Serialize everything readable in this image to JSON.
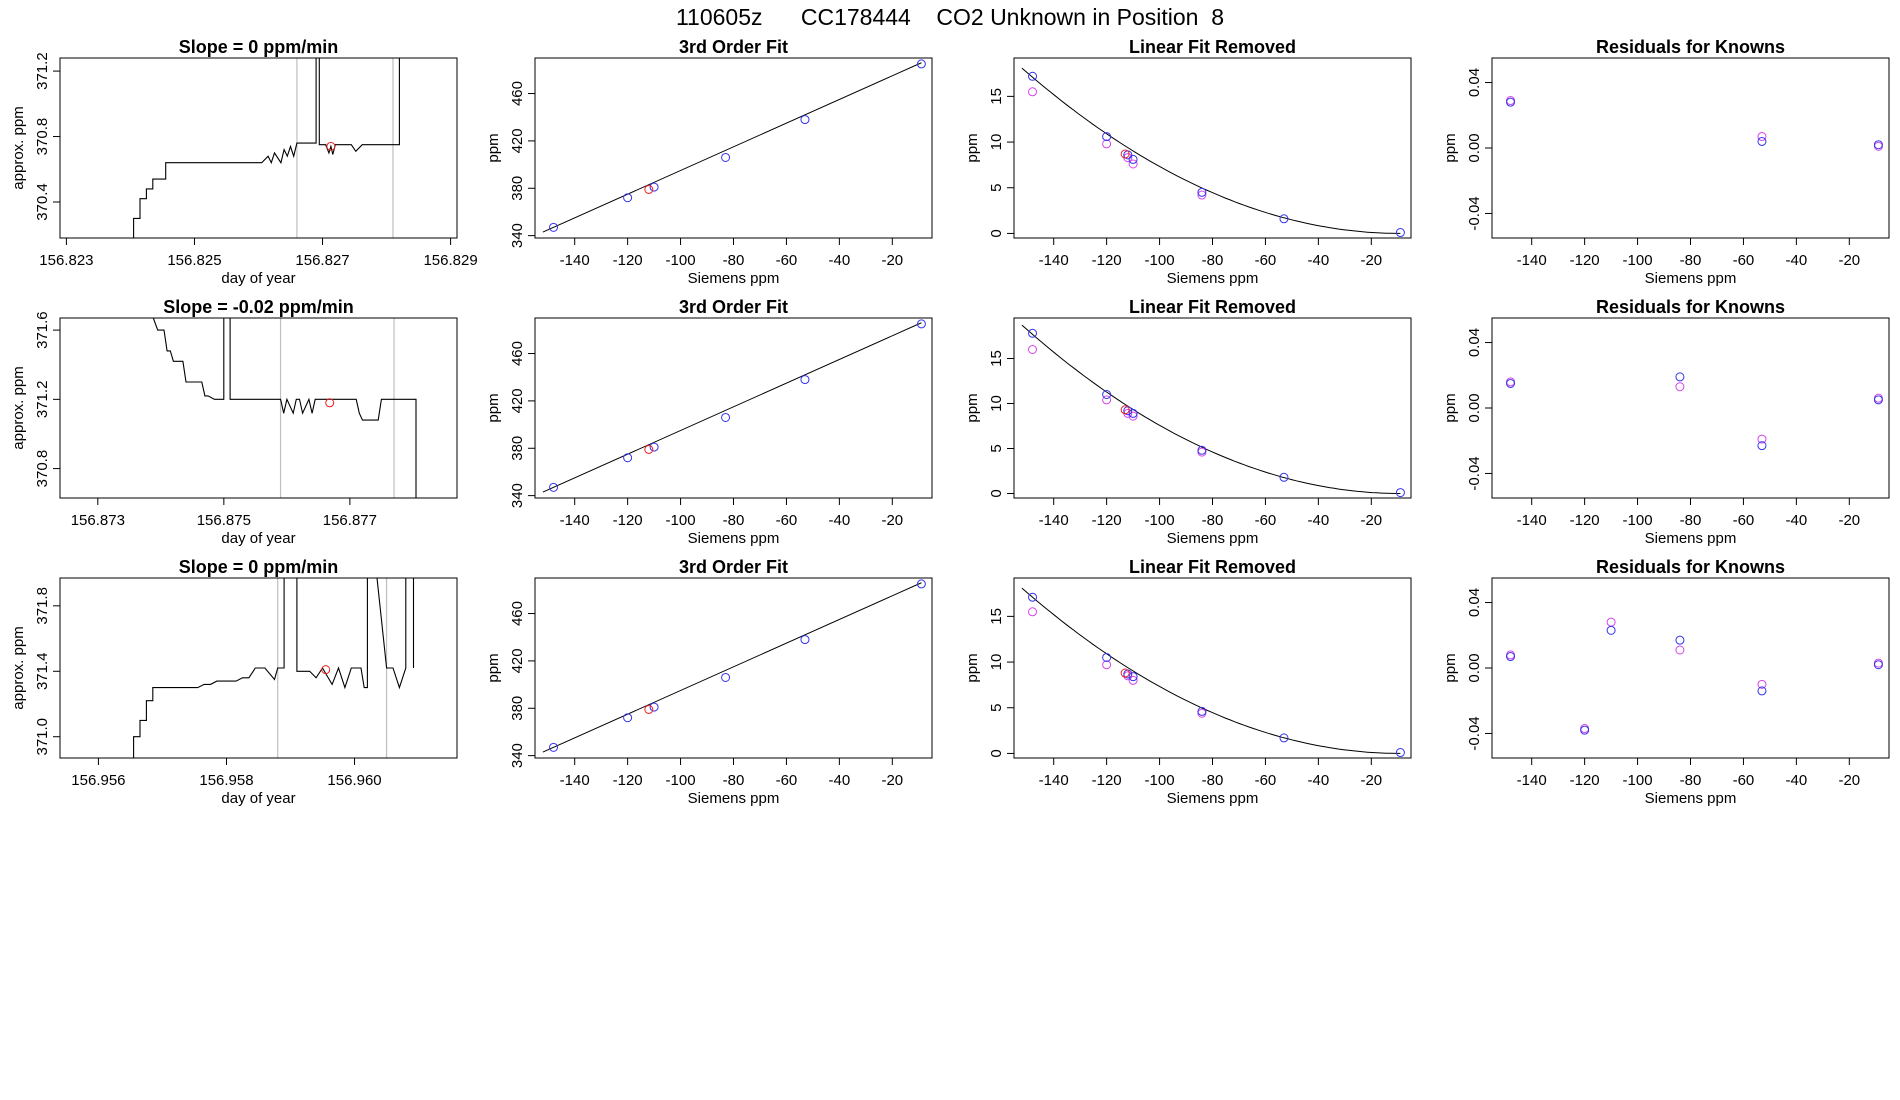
{
  "figure_title": "110605z      CC178444    CO2 Unknown in Position  8",
  "colors": {
    "trace": "#000000",
    "marker_red": "#ee2222",
    "marker_blue": "#3333ee",
    "marker_magenta": "#d645e8",
    "vline": "#bfbfbf"
  },
  "chart_data": [
    {
      "type": "line",
      "row": 1,
      "col": 1,
      "title": "Slope =  0  ppm/min",
      "xlabel": "day of year",
      "ylabel": "approx. ppm",
      "xlim": [
        156.8229,
        156.8291
      ],
      "ylim": [
        370.18,
        371.28
      ],
      "xticks": [
        156.823,
        156.825,
        156.827,
        156.829
      ],
      "xtick_labels": [
        "156.823",
        "156.825",
        "156.827",
        "156.829"
      ],
      "yticks": [
        370.4,
        370.8,
        371.2
      ],
      "ytick_labels": [
        "370.4",
        "370.8",
        "371.2"
      ],
      "trace": {
        "x": [
          156.82405,
          156.82405,
          156.82415,
          156.82415,
          156.82425,
          156.82425,
          156.82435,
          156.82435,
          156.82455,
          156.82455,
          156.82495,
          156.82495,
          156.82605,
          156.82615,
          156.8262,
          156.82625,
          156.82635,
          156.8264,
          156.82645,
          156.8265,
          156.82655,
          156.8266,
          156.8268,
          156.8269,
          156.8269,
          156.82695,
          156.82695,
          156.82705,
          156.8271,
          156.82713,
          156.82716,
          156.8272,
          156.8273,
          156.82745,
          156.82752,
          156.82762,
          156.8278,
          156.8281,
          156.8282,
          156.8282
        ],
        "y": [
          370.18,
          370.3,
          370.3,
          370.42,
          370.42,
          370.48,
          370.48,
          370.54,
          370.54,
          370.64,
          370.64,
          370.64,
          370.64,
          370.68,
          370.64,
          370.7,
          370.64,
          370.72,
          370.68,
          370.74,
          370.68,
          370.76,
          370.76,
          370.76,
          371.28,
          371.28,
          370.75,
          370.75,
          370.7,
          370.74,
          370.69,
          370.75,
          370.75,
          370.75,
          370.71,
          370.75,
          370.75,
          370.75,
          370.75,
          371.28
        ]
      },
      "vlines": [
        156.8266,
        156.8281
      ],
      "red_point": {
        "x": 156.82713,
        "y": 370.74
      }
    },
    {
      "type": "scatter",
      "row": 1,
      "col": 2,
      "title": "3rd Order Fit",
      "xlabel": "Siemens ppm",
      "ylabel": "ppm",
      "xlim": [
        -155,
        -5
      ],
      "ylim": [
        338,
        490
      ],
      "xticks": [
        -140,
        -120,
        -100,
        -80,
        -60,
        -40,
        -20
      ],
      "xtick_labels": [
        "-140",
        "-120",
        "-100",
        "-80",
        "-60",
        "-40",
        "-20"
      ],
      "yticks": [
        340,
        380,
        420,
        460
      ],
      "ytick_labels": [
        "340",
        "380",
        "420",
        "460"
      ],
      "fit_line": {
        "x": [
          -152,
          -9
        ],
        "y": [
          343,
          486
        ]
      },
      "blue_points": [
        [
          -148,
          347
        ],
        [
          -120,
          372
        ],
        [
          -110,
          381
        ],
        [
          -83,
          406
        ],
        [
          -53,
          438
        ],
        [
          -9,
          485
        ]
      ],
      "red_points": [
        [
          -112,
          379
        ]
      ]
    },
    {
      "type": "scatter",
      "row": 1,
      "col": 3,
      "title": "Linear Fit Removed",
      "xlabel": "Siemens ppm",
      "ylabel": "ppm",
      "xlim": [
        -155,
        -5
      ],
      "ylim": [
        -0.5,
        19.2
      ],
      "xticks": [
        -140,
        -120,
        -100,
        -80,
        -60,
        -40,
        -20
      ],
      "xtick_labels": [
        "-140",
        "-120",
        "-100",
        "-80",
        "-60",
        "-40",
        "-20"
      ],
      "yticks": [
        0,
        5,
        10,
        15
      ],
      "ytick_labels": [
        "0",
        "5",
        "10",
        "15"
      ],
      "curve": {
        "vertex": -9,
        "a": 0.000885,
        "x_from": -152,
        "x_to": -9
      },
      "blue_points": [
        [
          -148,
          17.2
        ],
        [
          -120,
          10.6
        ],
        [
          -112,
          8.6
        ],
        [
          -110,
          8.1
        ],
        [
          -84,
          4.5
        ],
        [
          -53,
          1.6
        ],
        [
          -9,
          0.1
        ]
      ],
      "magenta_points": [
        [
          -148,
          15.5
        ],
        [
          -120,
          9.8
        ],
        [
          -112,
          8.3
        ],
        [
          -110,
          7.6
        ],
        [
          -84,
          4.2
        ]
      ],
      "red_points": [
        [
          -113,
          8.7
        ]
      ]
    },
    {
      "type": "scatter",
      "row": 1,
      "col": 4,
      "title": "Residuals for Knowns",
      "xlabel": "Siemens ppm",
      "ylabel": "ppm",
      "xlim": [
        -155,
        -5
      ],
      "ylim": [
        -0.055,
        0.055
      ],
      "xticks": [
        -140,
        -120,
        -100,
        -80,
        -60,
        -40,
        -20
      ],
      "xtick_labels": [
        "-140",
        "-120",
        "-100",
        "-80",
        "-60",
        "-40",
        "-20"
      ],
      "yticks": [
        -0.04,
        0.0,
        0.04
      ],
      "ytick_labels": [
        "-0.04",
        "0.00",
        "0.04"
      ],
      "blue_points": [
        [
          -148,
          0.028
        ],
        [
          -53,
          0.004
        ],
        [
          -9,
          0.002
        ]
      ],
      "magenta_points": [
        [
          -148,
          0.029
        ],
        [
          -53,
          0.007
        ],
        [
          -9,
          0.001
        ]
      ]
    },
    {
      "type": "line",
      "row": 2,
      "col": 1,
      "title": "Slope =  -0.02  ppm/min",
      "xlabel": "day of year",
      "ylabel": "approx. ppm",
      "xlim": [
        156.8724,
        156.8787
      ],
      "ylim": [
        370.63,
        371.67
      ],
      "xticks": [
        156.873,
        156.875,
        156.877
      ],
      "xtick_labels": [
        "156.873",
        "156.875",
        "156.877"
      ],
      "yticks": [
        370.8,
        371.2,
        371.6
      ],
      "ytick_labels": [
        "370.8",
        "371.2",
        "371.6"
      ],
      "trace": {
        "x": [
          156.87388,
          156.87395,
          156.87405,
          156.8741,
          156.87415,
          156.8742,
          156.87435,
          156.8744,
          156.87455,
          156.87465,
          156.8747,
          156.87475,
          156.87485,
          156.87495,
          156.875,
          156.875,
          156.8751,
          156.8751,
          156.8759,
          156.87595,
          156.876,
          156.8761,
          156.87615,
          156.8762,
          156.87625,
          156.87635,
          156.8764,
          156.87645,
          156.8767,
          156.8769,
          156.8771,
          156.87715,
          156.8772,
          156.87745,
          156.8775,
          156.87755,
          156.87805,
          156.87805
        ],
        "y": [
          371.67,
          371.6,
          371.6,
          371.48,
          371.48,
          371.42,
          371.42,
          371.3,
          371.3,
          371.3,
          371.22,
          371.22,
          371.2,
          371.2,
          371.2,
          371.67,
          371.67,
          371.2,
          371.2,
          371.12,
          371.2,
          371.12,
          371.2,
          371.2,
          371.12,
          371.2,
          371.12,
          371.2,
          371.2,
          371.2,
          371.2,
          371.12,
          371.08,
          371.08,
          371.2,
          371.2,
          371.2,
          370.63
        ]
      },
      "vlines": [
        156.8759,
        156.8777
      ],
      "red_point": {
        "x": 156.87668,
        "y": 371.18
      }
    },
    {
      "type": "scatter",
      "row": 2,
      "col": 2,
      "title": "3rd Order Fit",
      "xlabel": "Siemens ppm",
      "ylabel": "ppm",
      "xlim": [
        -155,
        -5
      ],
      "ylim": [
        338,
        490
      ],
      "xticks": [
        -140,
        -120,
        -100,
        -80,
        -60,
        -40,
        -20
      ],
      "xtick_labels": [
        "-140",
        "-120",
        "-100",
        "-80",
        "-60",
        "-40",
        "-20"
      ],
      "yticks": [
        340,
        380,
        420,
        460
      ],
      "ytick_labels": [
        "340",
        "380",
        "420",
        "460"
      ],
      "fit_line": {
        "x": [
          -152,
          -9
        ],
        "y": [
          343,
          486
        ]
      },
      "blue_points": [
        [
          -148,
          347
        ],
        [
          -120,
          372
        ],
        [
          -110,
          381
        ],
        [
          -83,
          406
        ],
        [
          -53,
          438
        ],
        [
          -9,
          485
        ]
      ],
      "red_points": [
        [
          -112,
          379
        ]
      ]
    },
    {
      "type": "scatter",
      "row": 2,
      "col": 3,
      "title": "Linear Fit Removed",
      "xlabel": "Siemens ppm",
      "ylabel": "ppm",
      "xlim": [
        -155,
        -5
      ],
      "ylim": [
        -0.5,
        19.5
      ],
      "xticks": [
        -140,
        -120,
        -100,
        -80,
        -60,
        -40,
        -20
      ],
      "xtick_labels": [
        "-140",
        "-120",
        "-100",
        "-80",
        "-60",
        "-40",
        "-20"
      ],
      "yticks": [
        0,
        5,
        10,
        15
      ],
      "ytick_labels": [
        "0",
        "5",
        "10",
        "15"
      ],
      "curve": {
        "vertex": -9,
        "a": 0.000915,
        "x_from": -152,
        "x_to": -9
      },
      "blue_points": [
        [
          -148,
          17.8
        ],
        [
          -120,
          11.0
        ],
        [
          -112,
          9.2
        ],
        [
          -110,
          8.9
        ],
        [
          -84,
          4.8
        ],
        [
          -53,
          1.8
        ],
        [
          -9,
          0.1
        ]
      ],
      "magenta_points": [
        [
          -148,
          16.0
        ],
        [
          -120,
          10.4
        ],
        [
          -112,
          8.9
        ],
        [
          -110,
          8.6
        ],
        [
          -84,
          4.6
        ]
      ],
      "red_points": [
        [
          -113,
          9.3
        ]
      ]
    },
    {
      "type": "scatter",
      "row": 2,
      "col": 4,
      "title": "Residuals for Knowns",
      "xlabel": "Siemens ppm",
      "ylabel": "ppm",
      "xlim": [
        -155,
        -5
      ],
      "ylim": [
        -0.055,
        0.055
      ],
      "xticks": [
        -140,
        -120,
        -100,
        -80,
        -60,
        -40,
        -20
      ],
      "xtick_labels": [
        "-140",
        "-120",
        "-100",
        "-80",
        "-60",
        "-40",
        "-20"
      ],
      "yticks": [
        -0.04,
        0.0,
        0.04
      ],
      "ytick_labels": [
        "-0.04",
        "0.00",
        "0.04"
      ],
      "blue_points": [
        [
          -148,
          0.015
        ],
        [
          -84,
          0.019
        ],
        [
          -53,
          -0.023
        ],
        [
          -9,
          0.005
        ]
      ],
      "magenta_points": [
        [
          -148,
          0.016
        ],
        [
          -84,
          0.013
        ],
        [
          -53,
          -0.019
        ],
        [
          -9,
          0.006
        ]
      ]
    },
    {
      "type": "line",
      "row": 3,
      "col": 1,
      "title": "Slope =  0  ppm/min",
      "xlabel": "day of year",
      "ylabel": "approx. ppm",
      "xlim": [
        156.9554,
        156.9616
      ],
      "ylim": [
        370.87,
        371.97
      ],
      "xticks": [
        156.956,
        156.958,
        156.96
      ],
      "xtick_labels": [
        "156.956",
        "156.958",
        "156.960"
      ],
      "yticks": [
        371.0,
        371.4,
        371.8
      ],
      "ytick_labels": [
        "371.0",
        "371.4",
        "371.8"
      ],
      "trace": {
        "x": [
          156.95655,
          156.95655,
          156.95665,
          156.95665,
          156.95675,
          156.95675,
          156.95685,
          156.95685,
          156.95755,
          156.95765,
          156.95775,
          156.95785,
          156.95815,
          156.95825,
          156.95835,
          156.95845,
          156.9586,
          156.95875,
          156.9588,
          156.95885,
          156.9589,
          156.9589,
          156.9591,
          156.9591,
          156.9593,
          156.9594,
          156.9595,
          156.95965,
          156.95975,
          156.95985,
          156.95995,
          156.9601,
          156.96015,
          156.9602,
          156.9602,
          156.96035,
          156.9605,
          156.9606,
          156.9607,
          156.9608,
          156.9608,
          156.96092,
          156.96092
        ],
        "y": [
          370.87,
          371.0,
          371.0,
          371.1,
          371.1,
          371.22,
          371.22,
          371.3,
          371.3,
          371.32,
          371.32,
          371.34,
          371.34,
          371.36,
          371.36,
          371.42,
          371.42,
          371.35,
          371.42,
          371.42,
          371.42,
          371.97,
          371.97,
          371.4,
          371.4,
          371.36,
          371.42,
          371.32,
          371.42,
          371.3,
          371.42,
          371.42,
          371.3,
          371.3,
          371.97,
          371.97,
          371.42,
          371.42,
          371.3,
          371.42,
          371.97,
          371.97,
          371.42
        ]
      },
      "vlines": [
        156.9588,
        156.9605
      ],
      "red_point": {
        "x": 156.95955,
        "y": 371.41
      }
    },
    {
      "type": "scatter",
      "row": 3,
      "col": 2,
      "title": "3rd Order Fit",
      "xlabel": "Siemens ppm",
      "ylabel": "ppm",
      "xlim": [
        -155,
        -5
      ],
      "ylim": [
        338,
        490
      ],
      "xticks": [
        -140,
        -120,
        -100,
        -80,
        -60,
        -40,
        -20
      ],
      "xtick_labels": [
        "-140",
        "-120",
        "-100",
        "-80",
        "-60",
        "-40",
        "-20"
      ],
      "yticks": [
        340,
        380,
        420,
        460
      ],
      "ytick_labels": [
        "340",
        "380",
        "420",
        "460"
      ],
      "fit_line": {
        "x": [
          -152,
          -9
        ],
        "y": [
          343,
          486
        ]
      },
      "blue_points": [
        [
          -148,
          347
        ],
        [
          -120,
          372
        ],
        [
          -110,
          381
        ],
        [
          -83,
          406
        ],
        [
          -53,
          438
        ],
        [
          -9,
          485
        ]
      ],
      "red_points": [
        [
          -112,
          379
        ]
      ]
    },
    {
      "type": "scatter",
      "row": 3,
      "col": 3,
      "title": "Linear Fit Removed",
      "xlabel": "Siemens ppm",
      "ylabel": "ppm",
      "xlim": [
        -155,
        -5
      ],
      "ylim": [
        -0.5,
        19.2
      ],
      "xticks": [
        -140,
        -120,
        -100,
        -80,
        -60,
        -40,
        -20
      ],
      "xtick_labels": [
        "-140",
        "-120",
        "-100",
        "-80",
        "-60",
        "-40",
        "-20"
      ],
      "yticks": [
        0,
        5,
        10,
        15
      ],
      "ytick_labels": [
        "0",
        "5",
        "10",
        "15"
      ],
      "curve": {
        "vertex": -9,
        "a": 0.000885,
        "x_from": -152,
        "x_to": -9
      },
      "blue_points": [
        [
          -148,
          17.1
        ],
        [
          -120,
          10.5
        ],
        [
          -112,
          8.7
        ],
        [
          -110,
          8.4
        ],
        [
          -84,
          4.6
        ],
        [
          -53,
          1.7
        ],
        [
          -9,
          0.1
        ]
      ],
      "magenta_points": [
        [
          -148,
          15.5
        ],
        [
          -120,
          9.7
        ],
        [
          -112,
          8.5
        ],
        [
          -110,
          8.0
        ],
        [
          -84,
          4.4
        ]
      ],
      "red_points": [
        [
          -113,
          8.8
        ]
      ]
    },
    {
      "type": "scatter",
      "row": 3,
      "col": 4,
      "title": "Residuals for Knowns",
      "xlabel": "Siemens ppm",
      "ylabel": "ppm",
      "xlim": [
        -155,
        -5
      ],
      "ylim": [
        -0.055,
        0.055
      ],
      "xticks": [
        -140,
        -120,
        -100,
        -80,
        -60,
        -40,
        -20
      ],
      "xtick_labels": [
        "-140",
        "-120",
        "-100",
        "-80",
        "-60",
        "-40",
        "-20"
      ],
      "yticks": [
        -0.04,
        0.0,
        0.04
      ],
      "ytick_labels": [
        "-0.04",
        "0.00",
        "0.04"
      ],
      "blue_points": [
        [
          -148,
          0.007
        ],
        [
          -120,
          -0.038
        ],
        [
          -110,
          0.023
        ],
        [
          -84,
          0.017
        ],
        [
          -53,
          -0.014
        ],
        [
          -9,
          0.002
        ]
      ],
      "magenta_points": [
        [
          -148,
          0.008
        ],
        [
          -120,
          -0.037
        ],
        [
          -110,
          0.028
        ],
        [
          -84,
          0.011
        ],
        [
          -53,
          -0.01
        ],
        [
          -9,
          0.003
        ]
      ]
    }
  ]
}
